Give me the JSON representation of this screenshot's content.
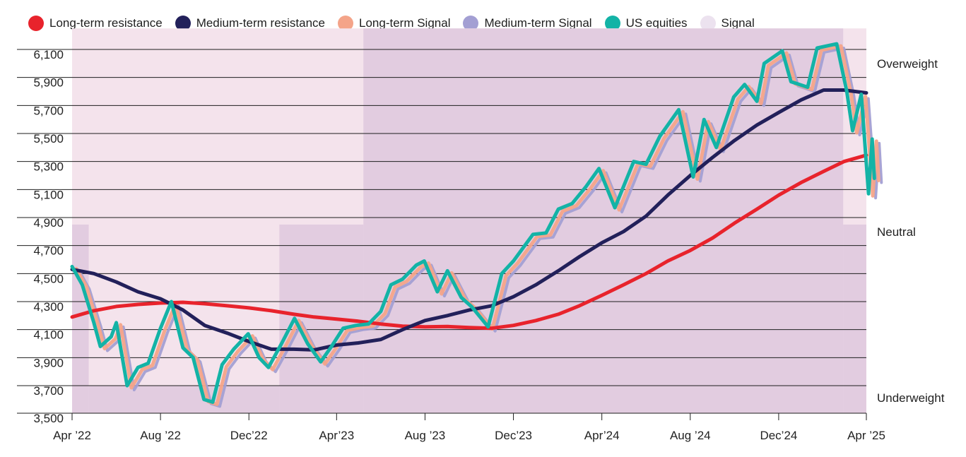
{
  "legend": [
    {
      "label": "Long-term resistance",
      "color": "#e8232c"
    },
    {
      "label": "Medium-term resistance",
      "color": "#22205a"
    },
    {
      "label": "Long-term Signal",
      "color": "#f4a489"
    },
    {
      "label": "Medium-term Signal",
      "color": "#a39fd3"
    },
    {
      "label": "US equities",
      "color": "#13b3a6"
    },
    {
      "label": "Signal",
      "color": "#ece2ef"
    }
  ],
  "chart_data": {
    "type": "line",
    "x_range": [
      "2022-04-01",
      "2025-04-01"
    ],
    "ylim": [
      3500,
      6250
    ],
    "grid": true,
    "legend_position": "top",
    "yticks": [
      {
        "value": 6100,
        "label": "6,100"
      },
      {
        "value": 5900,
        "label": "5,900"
      },
      {
        "value": 5700,
        "label": "5,700"
      },
      {
        "value": 5500,
        "label": "5,500"
      },
      {
        "value": 5300,
        "label": "5,300"
      },
      {
        "value": 5100,
        "label": "5,100"
      },
      {
        "value": 4900,
        "label": "4,900"
      },
      {
        "value": 4700,
        "label": "4,700"
      },
      {
        "value": 4500,
        "label": "4,500"
      },
      {
        "value": 4300,
        "label": "4,300"
      },
      {
        "value": 4100,
        "label": "4,100"
      },
      {
        "value": 3900,
        "label": "3,900"
      },
      {
        "value": 3700,
        "label": "3,700"
      },
      {
        "value": 3500,
        "label": "3,500"
      }
    ],
    "xticks": [
      {
        "date": "2022-04-01",
        "label": "Apr ’22"
      },
      {
        "date": "2022-08-01",
        "label": "Aug ’22"
      },
      {
        "date": "2022-12-01",
        "label": "Dec’22"
      },
      {
        "date": "2023-04-01",
        "label": "Apr’23"
      },
      {
        "date": "2023-08-01",
        "label": "Aug ’23"
      },
      {
        "date": "2023-12-01",
        "label": "Dec’23"
      },
      {
        "date": "2024-04-01",
        "label": "Apr’24"
      },
      {
        "date": "2024-08-01",
        "label": "Aug ’24"
      },
      {
        "date": "2024-12-01",
        "label": "Dec’24"
      },
      {
        "date": "2025-04-01",
        "label": "Apr ’25"
      }
    ],
    "signal_levels": [
      {
        "label": "Overweight",
        "range": [
          4850,
          6250
        ]
      },
      {
        "label": "Neutral",
        "range": [
          3700,
          4850
        ]
      },
      {
        "label": "Underweight",
        "range": [
          3500,
          3700
        ]
      }
    ],
    "signal": [
      {
        "start": "2022-04-01",
        "end": "2022-04-24",
        "level": "Neutral"
      },
      {
        "start": "2022-04-24",
        "end": "2023-01-12",
        "level": "Underweight"
      },
      {
        "start": "2023-01-12",
        "end": "2023-05-08",
        "level": "Neutral"
      },
      {
        "start": "2023-05-08",
        "end": "2025-02-28",
        "level": "Overweight"
      },
      {
        "start": "2025-02-28",
        "end": "2025-04-01",
        "level": "Neutral"
      }
    ],
    "series": [
      {
        "name": "Long-term resistance",
        "color": "#e8232c",
        "points": [
          [
            "2022-04-01",
            4190
          ],
          [
            "2022-05-01",
            4235
          ],
          [
            "2022-06-01",
            4265
          ],
          [
            "2022-07-01",
            4280
          ],
          [
            "2022-08-01",
            4290
          ],
          [
            "2022-09-01",
            4295
          ],
          [
            "2022-10-01",
            4285
          ],
          [
            "2022-11-01",
            4270
          ],
          [
            "2022-12-01",
            4255
          ],
          [
            "2023-01-01",
            4235
          ],
          [
            "2023-02-01",
            4210
          ],
          [
            "2023-03-01",
            4190
          ],
          [
            "2023-04-01",
            4175
          ],
          [
            "2023-05-01",
            4160
          ],
          [
            "2023-06-01",
            4140
          ],
          [
            "2023-07-01",
            4125
          ],
          [
            "2023-08-01",
            4120
          ],
          [
            "2023-09-01",
            4122
          ],
          [
            "2023-10-01",
            4115
          ],
          [
            "2023-11-01",
            4110
          ],
          [
            "2023-12-01",
            4130
          ],
          [
            "2024-01-01",
            4165
          ],
          [
            "2024-02-01",
            4210
          ],
          [
            "2024-03-01",
            4270
          ],
          [
            "2024-04-01",
            4345
          ],
          [
            "2024-05-01",
            4420
          ],
          [
            "2024-06-01",
            4500
          ],
          [
            "2024-07-01",
            4590
          ],
          [
            "2024-08-01",
            4665
          ],
          [
            "2024-09-01",
            4755
          ],
          [
            "2024-10-01",
            4860
          ],
          [
            "2024-11-01",
            4960
          ],
          [
            "2024-12-01",
            5060
          ],
          [
            "2025-01-01",
            5150
          ],
          [
            "2025-02-01",
            5230
          ],
          [
            "2025-03-01",
            5300
          ],
          [
            "2025-04-01",
            5345
          ]
        ]
      },
      {
        "name": "Medium-term resistance",
        "color": "#22205a",
        "points": [
          [
            "2022-04-01",
            4530
          ],
          [
            "2022-05-01",
            4500
          ],
          [
            "2022-06-01",
            4440
          ],
          [
            "2022-07-01",
            4370
          ],
          [
            "2022-08-01",
            4320
          ],
          [
            "2022-09-01",
            4240
          ],
          [
            "2022-10-01",
            4130
          ],
          [
            "2022-11-01",
            4075
          ],
          [
            "2022-12-01",
            4015
          ],
          [
            "2023-01-01",
            3960
          ],
          [
            "2023-02-01",
            3960
          ],
          [
            "2023-03-01",
            3955
          ],
          [
            "2023-04-01",
            3990
          ],
          [
            "2023-05-01",
            4005
          ],
          [
            "2023-06-01",
            4030
          ],
          [
            "2023-07-01",
            4100
          ],
          [
            "2023-08-01",
            4165
          ],
          [
            "2023-09-01",
            4200
          ],
          [
            "2023-10-01",
            4240
          ],
          [
            "2023-11-01",
            4270
          ],
          [
            "2023-12-01",
            4335
          ],
          [
            "2024-01-01",
            4420
          ],
          [
            "2024-02-01",
            4520
          ],
          [
            "2024-03-01",
            4620
          ],
          [
            "2024-04-01",
            4720
          ],
          [
            "2024-05-01",
            4800
          ],
          [
            "2024-06-01",
            4910
          ],
          [
            "2024-07-01",
            5060
          ],
          [
            "2024-08-01",
            5200
          ],
          [
            "2024-09-01",
            5330
          ],
          [
            "2024-10-01",
            5450
          ],
          [
            "2024-11-01",
            5560
          ],
          [
            "2024-12-01",
            5650
          ],
          [
            "2025-01-01",
            5740
          ],
          [
            "2025-02-01",
            5810
          ],
          [
            "2025-03-01",
            5810
          ],
          [
            "2025-04-01",
            5790
          ]
        ]
      },
      {
        "name": "US equities",
        "color": "#13b3a6",
        "points": [
          [
            "2022-04-01",
            4550
          ],
          [
            "2022-04-15",
            4420
          ],
          [
            "2022-05-01",
            4150
          ],
          [
            "2022-05-10",
            3980
          ],
          [
            "2022-05-25",
            4050
          ],
          [
            "2022-06-01",
            4150
          ],
          [
            "2022-06-16",
            3700
          ],
          [
            "2022-07-01",
            3830
          ],
          [
            "2022-07-15",
            3860
          ],
          [
            "2022-08-01",
            4110
          ],
          [
            "2022-08-16",
            4300
          ],
          [
            "2022-09-01",
            3970
          ],
          [
            "2022-09-15",
            3900
          ],
          [
            "2022-09-30",
            3600
          ],
          [
            "2022-10-12",
            3580
          ],
          [
            "2022-10-25",
            3850
          ],
          [
            "2022-11-10",
            3960
          ],
          [
            "2022-11-30",
            4070
          ],
          [
            "2022-12-15",
            3900
          ],
          [
            "2022-12-28",
            3830
          ],
          [
            "2023-01-15",
            4000
          ],
          [
            "2023-02-02",
            4180
          ],
          [
            "2023-02-20",
            4000
          ],
          [
            "2023-03-10",
            3870
          ],
          [
            "2023-03-25",
            3980
          ],
          [
            "2023-04-10",
            4110
          ],
          [
            "2023-04-28",
            4130
          ],
          [
            "2023-05-15",
            4140
          ],
          [
            "2023-06-01",
            4230
          ],
          [
            "2023-06-15",
            4420
          ],
          [
            "2023-07-01",
            4460
          ],
          [
            "2023-07-20",
            4560
          ],
          [
            "2023-07-31",
            4590
          ],
          [
            "2023-08-18",
            4370
          ],
          [
            "2023-09-01",
            4520
          ],
          [
            "2023-09-20",
            4330
          ],
          [
            "2023-10-05",
            4260
          ],
          [
            "2023-10-27",
            4120
          ],
          [
            "2023-11-15",
            4500
          ],
          [
            "2023-12-01",
            4590
          ],
          [
            "2023-12-28",
            4780
          ],
          [
            "2024-01-15",
            4790
          ],
          [
            "2024-02-01",
            4960
          ],
          [
            "2024-02-20",
            5000
          ],
          [
            "2024-03-10",
            5120
          ],
          [
            "2024-03-28",
            5250
          ],
          [
            "2024-04-19",
            4970
          ],
          [
            "2024-05-15",
            5300
          ],
          [
            "2024-06-01",
            5280
          ],
          [
            "2024-06-20",
            5480
          ],
          [
            "2024-07-16",
            5670
          ],
          [
            "2024-08-05",
            5190
          ],
          [
            "2024-08-20",
            5600
          ],
          [
            "2024-09-06",
            5400
          ],
          [
            "2024-09-30",
            5760
          ],
          [
            "2024-10-15",
            5850
          ],
          [
            "2024-11-01",
            5730
          ],
          [
            "2024-11-11",
            6000
          ],
          [
            "2024-12-06",
            6090
          ],
          [
            "2024-12-18",
            5870
          ],
          [
            "2025-01-10",
            5830
          ],
          [
            "2025-01-23",
            6110
          ],
          [
            "2025-02-19",
            6140
          ],
          [
            "2025-03-05",
            5800
          ],
          [
            "2025-03-13",
            5520
          ],
          [
            "2025-03-25",
            5780
          ],
          [
            "2025-04-04",
            5070
          ],
          [
            "2025-04-09",
            5460
          ],
          [
            "2025-04-12",
            5180
          ]
        ]
      }
    ]
  },
  "colors": {
    "signal_band": "#f4e3ec",
    "signal_overweight": "#e2cce0",
    "long_term_signal": "#f4a489",
    "medium_term_signal": "#a39fd3",
    "gridline": "#1e1e1e"
  }
}
